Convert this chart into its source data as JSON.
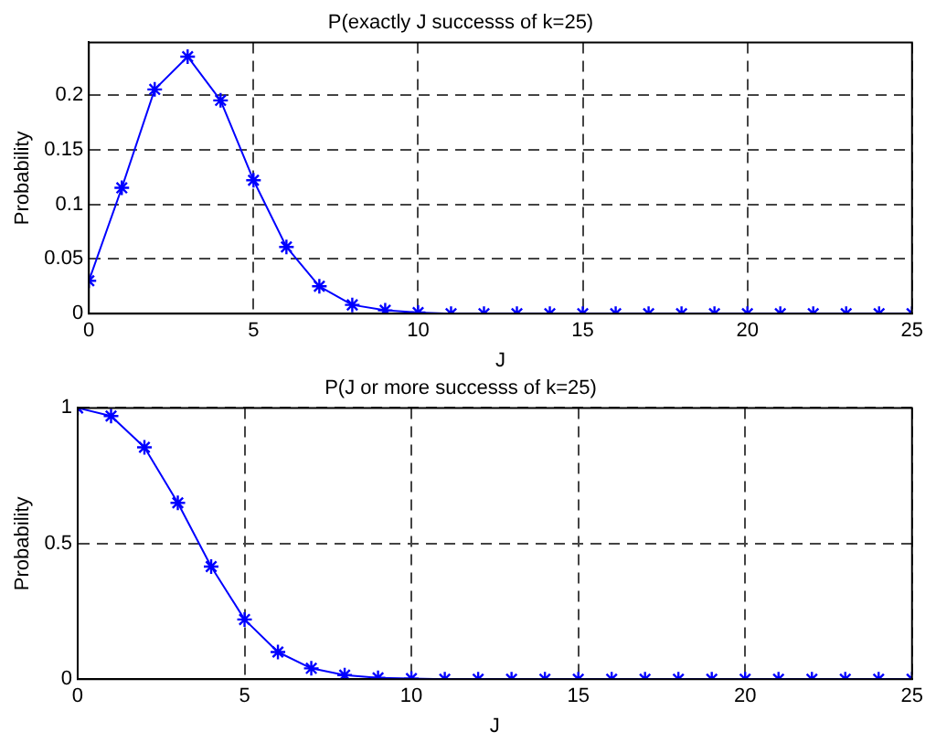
{
  "chart_data": [
    {
      "type": "line",
      "title": "P(exactly J successs of k=25)",
      "xlabel": "J",
      "ylabel": "Probability",
      "x": [
        0,
        1,
        2,
        3,
        4,
        5,
        6,
        7,
        8,
        9,
        10,
        11,
        12,
        13,
        14,
        15,
        16,
        17,
        18,
        19,
        20,
        21,
        22,
        23,
        24,
        25
      ],
      "series": [
        {
          "color": "#0000ff",
          "values": [
            0.03,
            0.115,
            0.205,
            0.235,
            0.195,
            0.122,
            0.061,
            0.025,
            0.008,
            0.003,
            0.001,
            0,
            0,
            0,
            0,
            0,
            0,
            0,
            0,
            0,
            0,
            0,
            0,
            0,
            0,
            0
          ]
        }
      ],
      "xlim": [
        0,
        25
      ],
      "xticks": [
        0,
        5,
        10,
        15,
        20,
        25
      ],
      "ylim": [
        0,
        0.248
      ],
      "yticks": [
        0,
        0.05,
        0.1,
        0.15,
        0.2
      ],
      "grid": true,
      "marker": "cross",
      "line_style": "solid"
    },
    {
      "type": "line",
      "title": "P(J or more successs of k=25)",
      "xlabel": "J",
      "ylabel": "Probability",
      "x": [
        0,
        1,
        2,
        3,
        4,
        5,
        6,
        7,
        8,
        9,
        10,
        11,
        12,
        13,
        14,
        15,
        16,
        17,
        18,
        19,
        20,
        21,
        22,
        23,
        24,
        25
      ],
      "series": [
        {
          "color": "#0000ff",
          "values": [
            1,
            0.97,
            0.855,
            0.65,
            0.415,
            0.22,
            0.1,
            0.04,
            0.015,
            0.005,
            0.002,
            0,
            0,
            0,
            0,
            0,
            0,
            0,
            0,
            0,
            0,
            0,
            0,
            0,
            0,
            0
          ]
        }
      ],
      "xlim": [
        0,
        25
      ],
      "xticks": [
        0,
        5,
        10,
        15,
        20,
        25
      ],
      "ylim": [
        0,
        1
      ],
      "yticks": [
        0,
        0.5,
        1
      ],
      "grid": true,
      "marker": "cross",
      "line_style": "solid"
    }
  ]
}
